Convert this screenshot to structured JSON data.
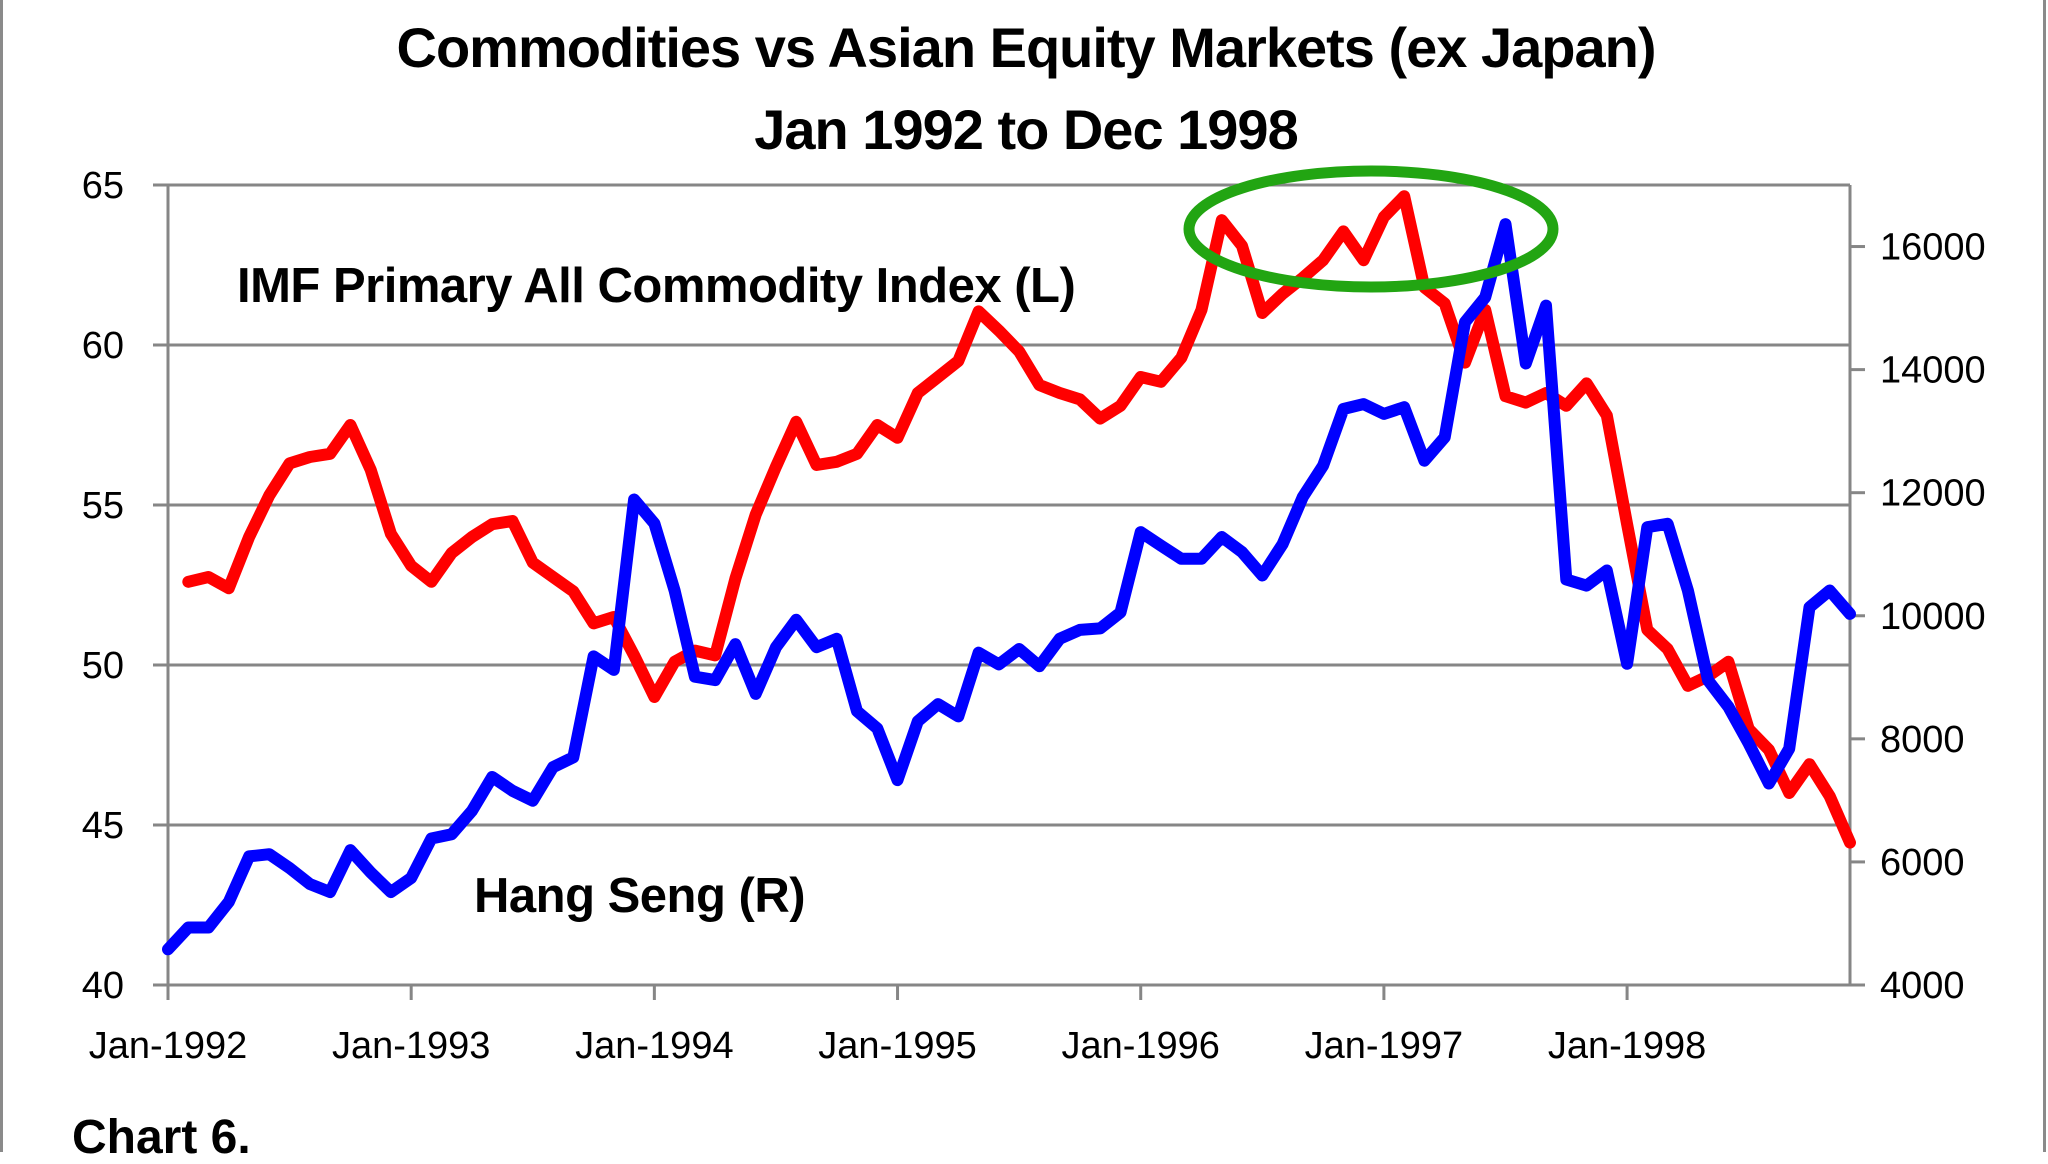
{
  "title": {
    "line1": "Commodities vs Asian Equity Markets (ex Japan)",
    "line2": "Jan 1992 to Dec 1998"
  },
  "labels": {
    "commodity": "IMF Primary All Commodity Index (L)",
    "hang_seng": "Hang Seng (R)"
  },
  "caption": "Chart 6.",
  "colors": {
    "commodity": "#FF0000",
    "hang_seng": "#0000FF",
    "highlight": "#22A512",
    "grid": "#868686",
    "border": "#8A8A8A"
  },
  "chart_data": {
    "type": "line",
    "title": "Commodities vs Asian Equity Markets (ex Japan) — Jan 1992 to Dec 1998",
    "xlabel": "",
    "ylabel_left": "IMF Primary All Commodity Index",
    "ylabel_right": "Hang Seng",
    "x_start": "Jan-1992",
    "x_end": "Dec-1998",
    "x_frequency": "monthly",
    "x_tick_labels": [
      "Jan-1992",
      "Jan-1993",
      "Jan-1994",
      "Jan-1995",
      "Jan-1996",
      "Jan-1997",
      "Jan-1998"
    ],
    "ylim_left": [
      40,
      65
    ],
    "yticks_left": [
      40,
      45,
      50,
      55,
      60,
      65
    ],
    "ylim_right": [
      4000,
      17000
    ],
    "yticks_right": [
      4000,
      6000,
      8000,
      10000,
      12000,
      14000,
      16000
    ],
    "grid": "horizontal (left axis)",
    "legend": "inline text labels",
    "annotations": [
      {
        "type": "ellipse",
        "color": "green",
        "around": "1996-1997 commodity peak and Hang Seng peak"
      }
    ],
    "series": [
      {
        "name": "IMF Primary All Commodity Index (L)",
        "axis": "left",
        "color": "red",
        "start_month_index": 1,
        "values": [
          52.6,
          52.75,
          52.4,
          54.0,
          55.3,
          56.3,
          56.5,
          56.6,
          57.5,
          56.1,
          54.1,
          53.1,
          52.6,
          53.5,
          54.0,
          54.4,
          54.5,
          53.2,
          52.75,
          52.3,
          51.3,
          51.5,
          50.3,
          49.0,
          50.1,
          50.45,
          50.3,
          52.7,
          54.7,
          56.2,
          57.6,
          56.25,
          56.35,
          56.6,
          57.5,
          57.1,
          58.5,
          59.0,
          59.5,
          61.05,
          60.45,
          59.8,
          58.75,
          58.5,
          58.3,
          57.7,
          58.1,
          59.0,
          58.85,
          59.6,
          61.1,
          63.9,
          63.1,
          61.0,
          61.6,
          62.1,
          62.65,
          63.55,
          62.65,
          64.0,
          64.65,
          61.8,
          61.3,
          59.45,
          61.1,
          58.4,
          58.2,
          58.5,
          58.1,
          58.8,
          57.8,
          54.4,
          51.1,
          50.5,
          49.35,
          49.65,
          50.1,
          48.0,
          47.35,
          46.0,
          46.9,
          45.9,
          44.45
        ]
      },
      {
        "name": "Hang Seng (R)",
        "axis": "right",
        "color": "blue",
        "start_month_index": 0,
        "values": [
          4580,
          4935,
          4935,
          5350,
          6090,
          6125,
          5900,
          5640,
          5510,
          6190,
          5830,
          5510,
          5740,
          6380,
          6450,
          6830,
          7380,
          7155,
          6995,
          7540,
          7700,
          9340,
          9120,
          11890,
          11500,
          10410,
          9010,
          8955,
          9540,
          8730,
          9490,
          9935,
          9490,
          9625,
          8450,
          8170,
          7330,
          8285,
          8565,
          8365,
          9400,
          9210,
          9460,
          9180,
          9625,
          9770,
          9795,
          10055,
          11360,
          11140,
          10925,
          10925,
          11280,
          11035,
          10655,
          11165,
          11930,
          12440,
          13360,
          13440,
          13280,
          13390,
          12520,
          12900,
          14770,
          15175,
          16365,
          14100,
          15040,
          10590,
          10490,
          10735,
          9220,
          11440,
          11495,
          10410,
          8950,
          8520,
          7925,
          7275,
          7840,
          10140,
          10410,
          10030
        ]
      }
    ]
  }
}
